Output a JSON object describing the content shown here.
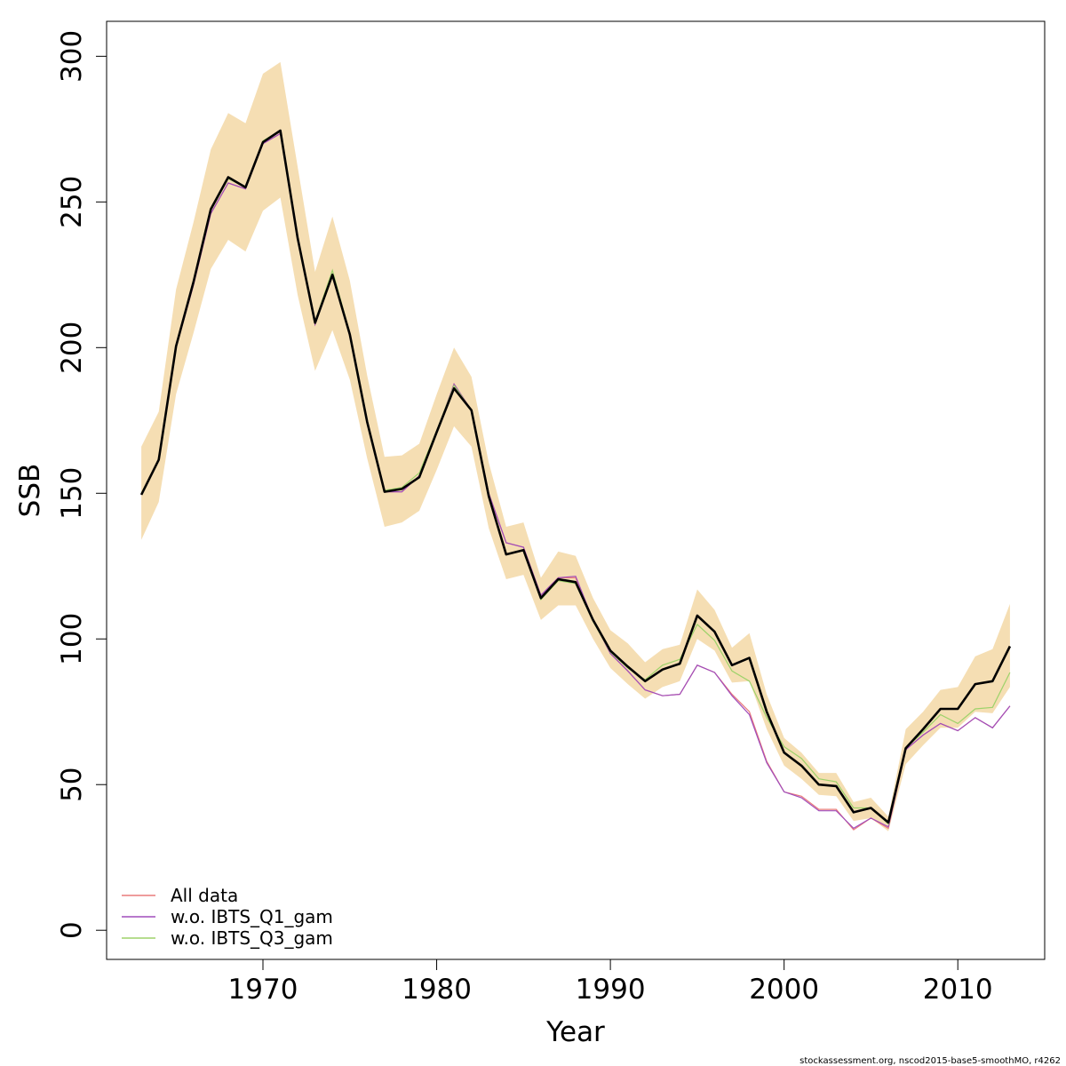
{
  "chart_data": {
    "type": "line",
    "xlabel": "Year",
    "ylabel": "SSB",
    "xlim": [
      1961,
      2015
    ],
    "ylim": [
      -10,
      312
    ],
    "x_ticks": [
      1970,
      1980,
      1990,
      2000,
      2010
    ],
    "y_ticks": [
      0,
      50,
      100,
      150,
      200,
      250,
      300
    ],
    "legend_placement": "bottom-left",
    "footer": "stockassessment.org, nscod2015-base5-smoothMO, r4262",
    "years": [
      1963,
      1964,
      1965,
      1966,
      1967,
      1968,
      1969,
      1970,
      1971,
      1972,
      1973,
      1974,
      1975,
      1976,
      1977,
      1978,
      1979,
      1980,
      1981,
      1982,
      1983,
      1984,
      1985,
      1986,
      1987,
      1988,
      1989,
      1990,
      1991,
      1992,
      1993,
      1994,
      1995,
      1996,
      1997,
      1998,
      1999,
      2000,
      2001,
      2002,
      2003,
      2004,
      2005,
      2006,
      2007,
      2008,
      2009,
      2010,
      2011,
      2012,
      2013
    ],
    "estimate": {
      "color": "#000000",
      "values": [
        149.5,
        161.5,
        200.5,
        222.5,
        247.5,
        258.5,
        255,
        270.5,
        274.5,
        237.5,
        208.5,
        225,
        204.5,
        174.5,
        150.5,
        151.5,
        155.5,
        171,
        186,
        178.5,
        149,
        129,
        130.5,
        114,
        120.5,
        119.5,
        106.5,
        96,
        90.5,
        85.5,
        89.5,
        91.5,
        108,
        102.5,
        91,
        93.5,
        75,
        61,
        56.5,
        50,
        49.5,
        40.5,
        42,
        37,
        62.5,
        69,
        76,
        76,
        84.5,
        85.5,
        97.5
      ]
    },
    "confidence_band": {
      "color": "#f5deb3",
      "upper": [
        166,
        178,
        220,
        243,
        268,
        280.5,
        277,
        294,
        298,
        262,
        226,
        245,
        223,
        190.5,
        162.5,
        163,
        167,
        184,
        200,
        190,
        160.5,
        138.5,
        140,
        121,
        130,
        128.5,
        114,
        103,
        98.5,
        92,
        96.5,
        98,
        117,
        110,
        97,
        102,
        81,
        66,
        61,
        54,
        54,
        44,
        45.5,
        39,
        69,
        75,
        82.5,
        83.5,
        94,
        96.5,
        112
      ],
      "lower": [
        134,
        147,
        184,
        205,
        227,
        237,
        233,
        247,
        251.5,
        218,
        192,
        206,
        189,
        162,
        138.5,
        140,
        144,
        158,
        173,
        166,
        138,
        120.5,
        122,
        106.5,
        111.5,
        111.5,
        100,
        90,
        84.5,
        79.5,
        83.5,
        85.5,
        100,
        96,
        85,
        85.5,
        69,
        56.5,
        52,
        46.5,
        46,
        37.5,
        38.5,
        34,
        57,
        63.5,
        69.5,
        69.5,
        75,
        74.5,
        83.5
      ]
    },
    "series": [
      {
        "name": "All data",
        "color": "#e97b7b",
        "values": [
          149.5,
          161.5,
          200,
          221.5,
          246,
          256.5,
          254.5,
          270,
          273.5,
          237,
          208,
          225,
          204,
          174,
          150.5,
          150.5,
          156,
          171,
          187.5,
          178.5,
          150,
          133,
          131.5,
          115,
          121,
          121,
          106.5,
          95,
          89,
          82.5,
          80.5,
          81,
          91,
          88.5,
          81,
          75,
          58,
          47.5,
          46,
          41.5,
          41.5,
          34.5,
          38.5,
          35,
          62,
          67,
          71,
          68.5,
          73,
          69.5,
          77
        ]
      },
      {
        "name": "w.o. IBTS_Q1_gam",
        "color": "#a04dbb",
        "values": [
          149.5,
          161.5,
          200,
          221.5,
          246,
          256.5,
          254.5,
          270,
          273.5,
          237,
          208,
          225,
          204,
          174,
          150.5,
          150.5,
          156,
          171,
          187.5,
          178.5,
          150,
          133,
          131.5,
          115,
          121,
          121.5,
          106.5,
          95,
          89,
          82.5,
          80.5,
          81,
          91,
          88.5,
          80.5,
          74,
          57.5,
          47.5,
          45.5,
          41,
          41,
          35,
          38.5,
          35.5,
          62,
          67,
          71,
          68.5,
          73,
          69.5,
          77
        ]
      },
      {
        "name": "w.o. IBTS_Q3_gam",
        "color": "#9dd26a",
        "values": [
          150,
          161.5,
          201,
          222,
          247,
          258,
          255,
          271,
          274.5,
          238,
          209,
          226.5,
          205,
          175,
          151,
          152,
          157,
          171.5,
          187,
          178.5,
          149,
          129,
          130.5,
          113.5,
          120,
          119,
          106,
          95.5,
          90,
          86,
          91,
          93,
          105,
          99.5,
          89,
          85.5,
          73,
          63,
          59,
          52,
          51,
          42,
          42,
          36.5,
          62.5,
          68,
          74,
          71,
          76,
          76.5,
          88.5
        ]
      }
    ]
  }
}
